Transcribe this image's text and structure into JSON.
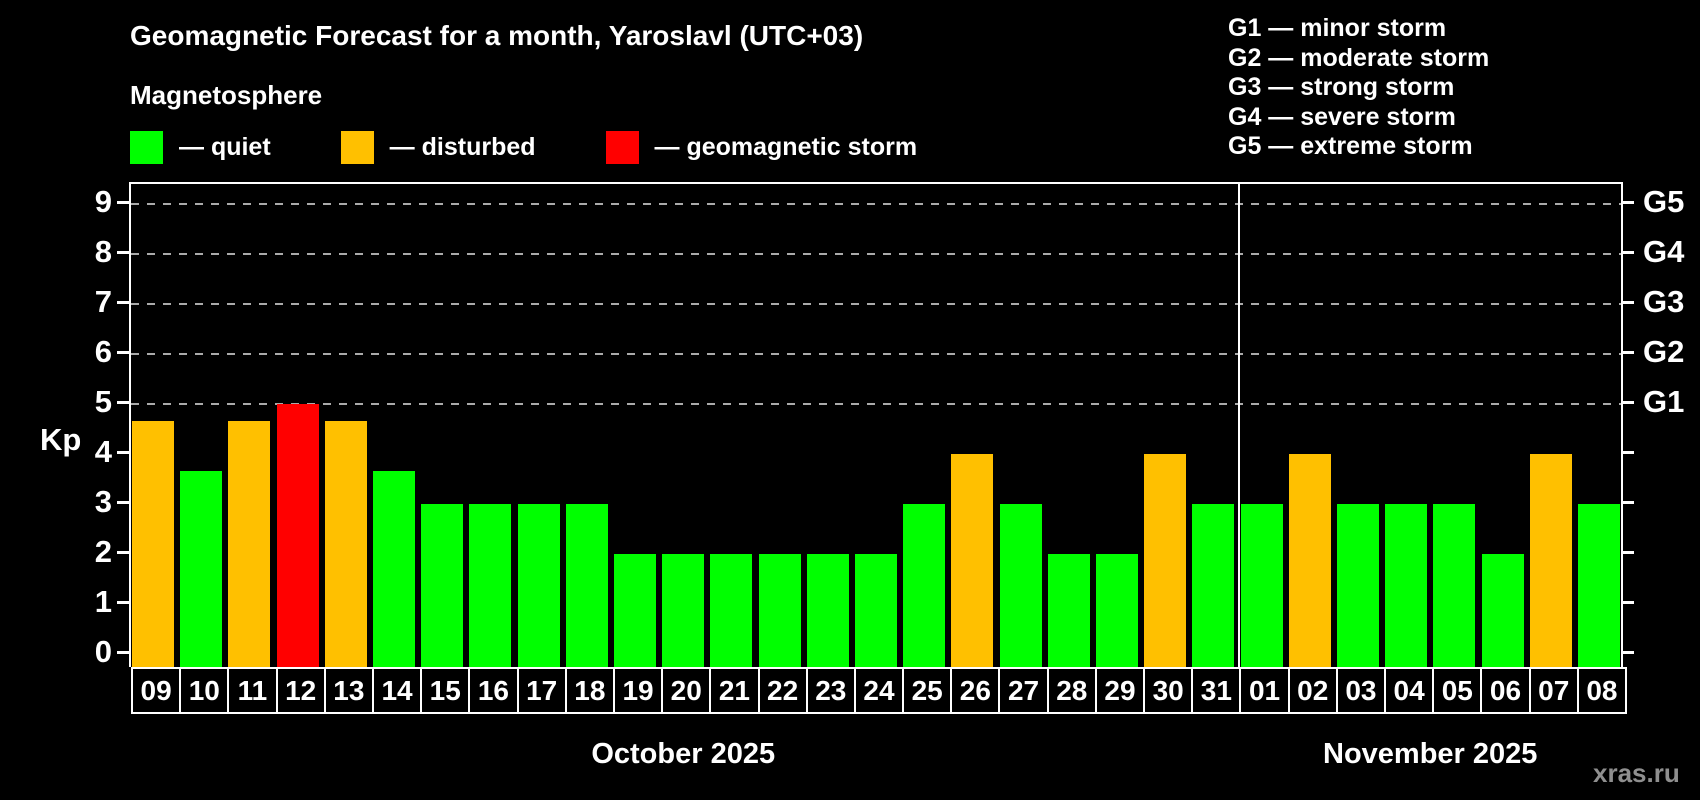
{
  "title": "Geomagnetic Forecast for a month, Yaroslavl (UTC+03)",
  "subtitle": "Magnetosphere",
  "watermark": "xras.ru",
  "legend": [
    {
      "label": "— quiet",
      "status": "quiet",
      "color": "#00ff00"
    },
    {
      "label": "— disturbed",
      "status": "disturbed",
      "color": "#ffc000"
    },
    {
      "label": "— geomagnetic storm",
      "status": "storm",
      "color": "#ff0000"
    }
  ],
  "storm_scale": [
    "G1 — minor storm",
    "G2 — moderate storm",
    "G3 — strong storm",
    "G4 — severe storm",
    "G5 — extreme storm"
  ],
  "chart_data": {
    "type": "bar",
    "title": "Geomagnetic Forecast for a month, Yaroslavl (UTC+03)",
    "xlabel": "",
    "ylabel": "Kp",
    "ylim": [
      0,
      9.5
    ],
    "yticks": [
      0,
      1,
      2,
      3,
      4,
      5,
      6,
      7,
      8,
      9
    ],
    "gridlines": [
      5,
      6,
      7,
      8,
      9
    ],
    "grid": "dashed-horizontal-above-5-only",
    "legend_position": "top-left",
    "right_axis_labels": [
      {
        "value": 5,
        "label": "G1"
      },
      {
        "value": 6,
        "label": "G2"
      },
      {
        "value": 7,
        "label": "G3"
      },
      {
        "value": 8,
        "label": "G4"
      },
      {
        "value": 9,
        "label": "G5"
      }
    ],
    "status_colors": {
      "quiet": "#00ff00",
      "disturbed": "#ffc000",
      "storm": "#ff0000"
    },
    "months": [
      {
        "label": "October 2025",
        "days": 23
      },
      {
        "label": "November 2025",
        "days": 8
      }
    ],
    "bars": [
      {
        "day": "09",
        "kp": 4.67,
        "status": "disturbed"
      },
      {
        "day": "10",
        "kp": 3.67,
        "status": "quiet"
      },
      {
        "day": "11",
        "kp": 4.67,
        "status": "disturbed"
      },
      {
        "day": "12",
        "kp": 5.0,
        "status": "storm"
      },
      {
        "day": "13",
        "kp": 4.67,
        "status": "disturbed"
      },
      {
        "day": "14",
        "kp": 3.67,
        "status": "quiet"
      },
      {
        "day": "15",
        "kp": 3.0,
        "status": "quiet"
      },
      {
        "day": "16",
        "kp": 3.0,
        "status": "quiet"
      },
      {
        "day": "17",
        "kp": 3.0,
        "status": "quiet"
      },
      {
        "day": "18",
        "kp": 3.0,
        "status": "quiet"
      },
      {
        "day": "19",
        "kp": 2.0,
        "status": "quiet"
      },
      {
        "day": "20",
        "kp": 2.0,
        "status": "quiet"
      },
      {
        "day": "21",
        "kp": 2.0,
        "status": "quiet"
      },
      {
        "day": "22",
        "kp": 2.0,
        "status": "quiet"
      },
      {
        "day": "23",
        "kp": 2.0,
        "status": "quiet"
      },
      {
        "day": "24",
        "kp": 2.0,
        "status": "quiet"
      },
      {
        "day": "25",
        "kp": 3.0,
        "status": "quiet"
      },
      {
        "day": "26",
        "kp": 4.0,
        "status": "disturbed"
      },
      {
        "day": "27",
        "kp": 3.0,
        "status": "quiet"
      },
      {
        "day": "28",
        "kp": 2.0,
        "status": "quiet"
      },
      {
        "day": "29",
        "kp": 2.0,
        "status": "quiet"
      },
      {
        "day": "30",
        "kp": 4.0,
        "status": "disturbed"
      },
      {
        "day": "31",
        "kp": 3.0,
        "status": "quiet"
      },
      {
        "day": "01",
        "kp": 3.0,
        "status": "quiet"
      },
      {
        "day": "02",
        "kp": 4.0,
        "status": "disturbed"
      },
      {
        "day": "03",
        "kp": 3.0,
        "status": "quiet"
      },
      {
        "day": "04",
        "kp": 3.0,
        "status": "quiet"
      },
      {
        "day": "05",
        "kp": 3.0,
        "status": "quiet"
      },
      {
        "day": "06",
        "kp": 2.0,
        "status": "quiet"
      },
      {
        "day": "07",
        "kp": 4.0,
        "status": "disturbed"
      },
      {
        "day": "08",
        "kp": 3.0,
        "status": "quiet"
      }
    ]
  }
}
